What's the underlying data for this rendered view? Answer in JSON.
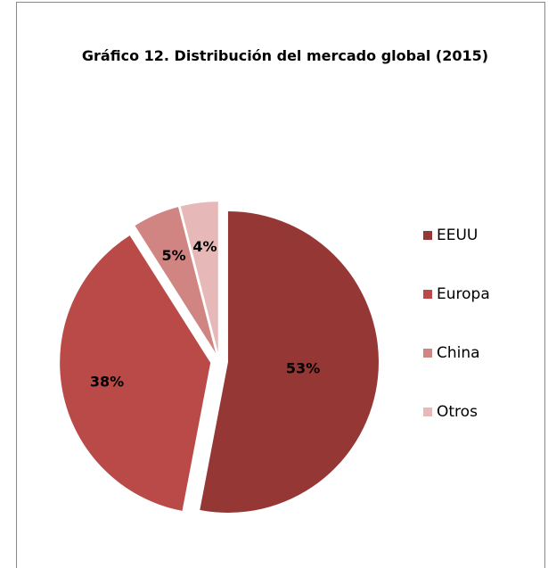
{
  "chart_data": {
    "type": "pie",
    "title": "Gráfico 12. Distribución del mercado global (2015)",
    "categories": [
      "EEUU",
      "Europa",
      "China",
      "Otros"
    ],
    "values": [
      53,
      38,
      5,
      4
    ],
    "value_labels": [
      "53%",
      "38%",
      "5%",
      "4%"
    ],
    "colors": [
      "#953735",
      "#b94a48",
      "#d08583",
      "#e6b9b8"
    ],
    "legend": "right"
  }
}
